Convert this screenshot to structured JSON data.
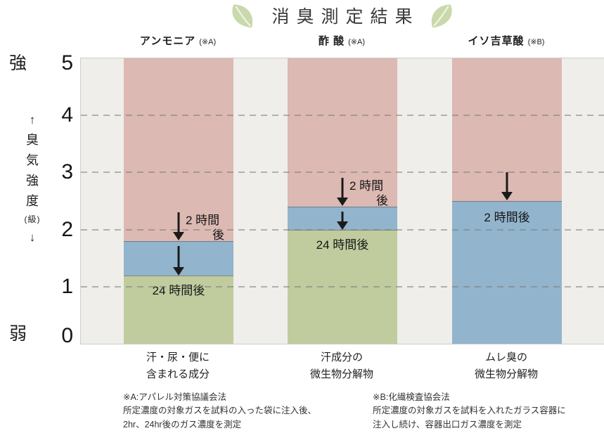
{
  "title": {
    "text": "消臭測定結果"
  },
  "axis": {
    "top_label": "強",
    "bottom_label": "弱",
    "vertical_label_chars": [
      "↑",
      "臭",
      "気",
      "強",
      "度",
      "(級)",
      "↓"
    ],
    "ticks": [
      "5",
      "4",
      "3",
      "2",
      "1",
      "0"
    ]
  },
  "chart_data": {
    "type": "bar",
    "title": "消臭測定結果",
    "ylabel": "臭気強度(級)",
    "ylim": [
      0,
      5
    ],
    "grid_values": [
      4,
      3,
      2,
      1
    ],
    "grid_style": "dashed",
    "legend_position": "none",
    "bars": [
      {
        "gas": "アンモニア",
        "method": "(※A)",
        "source_lines": [
          "汗・尿・便に",
          "含まれる成分"
        ],
        "initial": 5,
        "after_2h": 1.8,
        "after_24h": 1.2,
        "label_2h_lines": [
          "2 時間",
          "後"
        ],
        "label_24h": "24 時間後"
      },
      {
        "gas": "酢 酸",
        "method": "(※A)",
        "source_lines": [
          "汗成分の",
          "微生物分解物"
        ],
        "initial": 5,
        "after_2h": 2.4,
        "after_24h": 2.0,
        "label_2h_lines": [
          "2 時間",
          "後"
        ],
        "label_24h": "24 時間後"
      },
      {
        "gas": "イソ吉草酸",
        "method": "(※B)",
        "source_lines": [
          "ムレ臭の",
          "微生物分解物"
        ],
        "initial": 5,
        "after_2h": 2.5,
        "after_24h": null,
        "label_2h_lines": [
          "2 時間後"
        ],
        "label_24h": null
      }
    ]
  },
  "colors": {
    "initial_segment": "#dcb9b2",
    "after_2h_segment": "#92b4cd",
    "after_24h_segment": "#c0cc9e",
    "plot_background": "#efeeea",
    "leaf": "#c9d9ab",
    "grid_line": "#7d7d7a",
    "border": "#cdcdca",
    "arrow": "#1b1b1b",
    "text": "#333333"
  },
  "footnotes": {
    "a_lines": [
      "※A:アパレル対策協議会法",
      "所定濃度の対象ガスを試料の入った袋に注入後、",
      "2hr、24hr後のガス濃度を測定"
    ],
    "b_lines": [
      "※B:化繊検査協会法",
      "所定濃度の対象ガスを試料を入れたガラス容器に",
      "注入し続け、容器出口ガス濃度を測定"
    ]
  }
}
